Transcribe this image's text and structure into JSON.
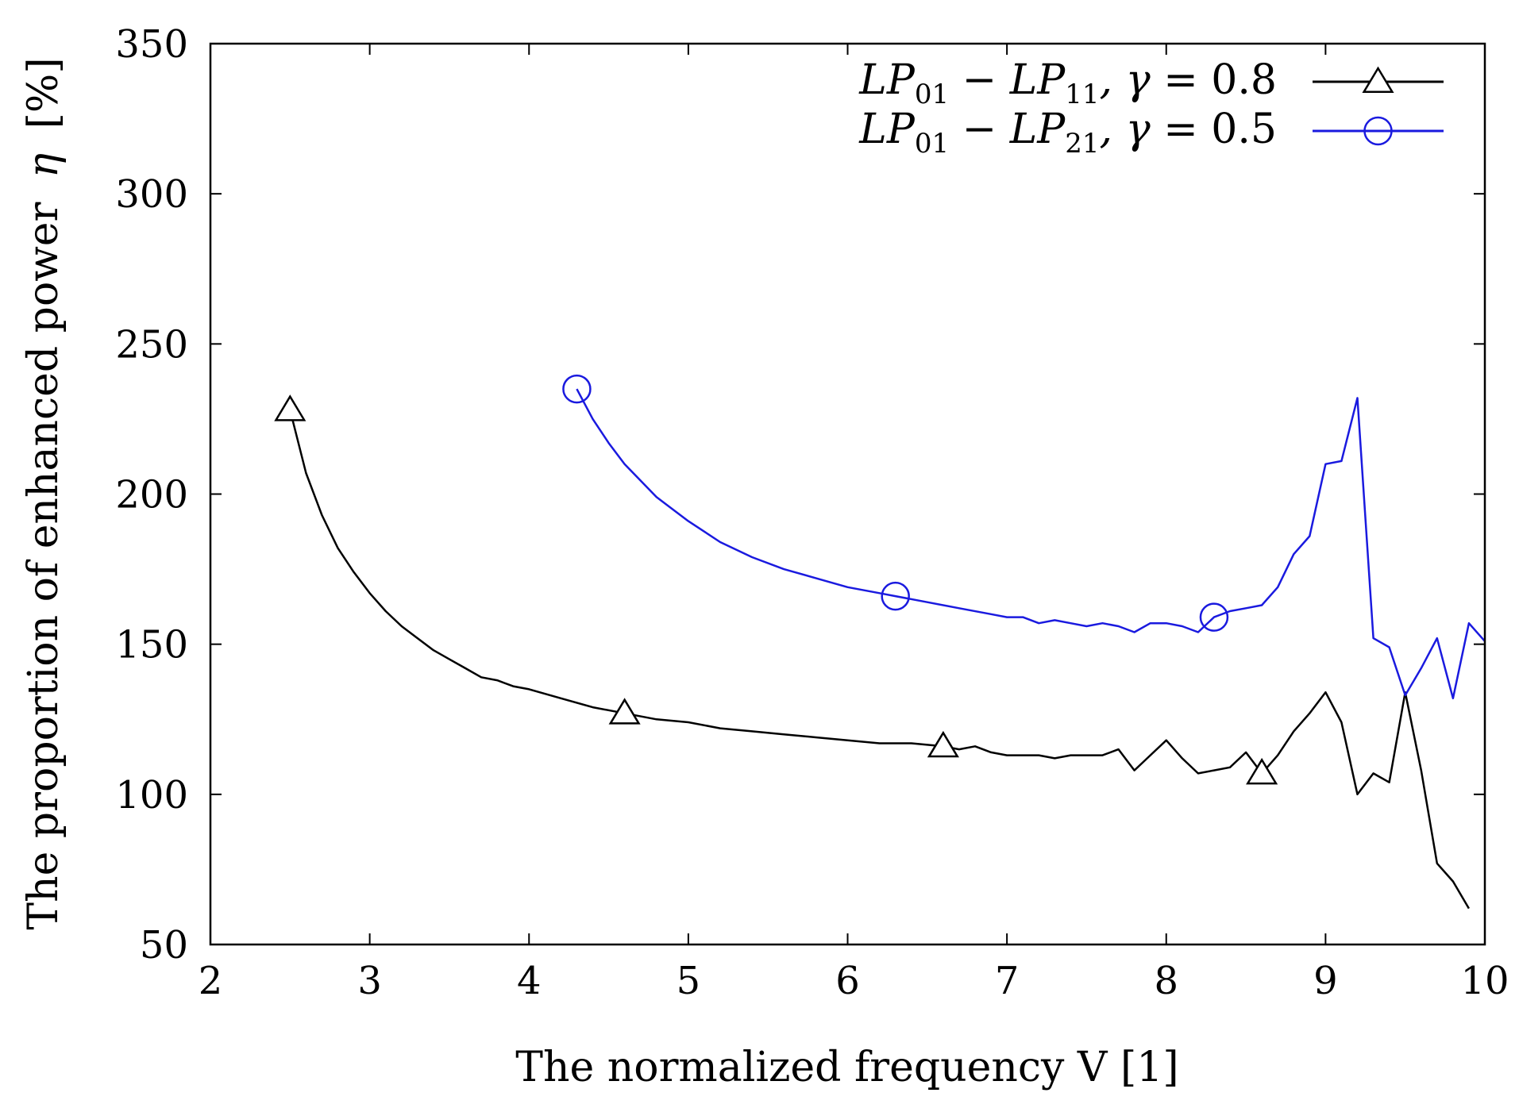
{
  "chart_data": {
    "type": "line",
    "title": "",
    "xlabel": "The normalized frequency V [1]",
    "ylabel_prefix": "The proportion of enhanced power",
    "ylabel_symbol": "η",
    "ylabel_unit": "[%]",
    "xlim": [
      2,
      10
    ],
    "ylim": [
      50,
      350
    ],
    "xticks": [
      "2",
      "3",
      "4",
      "5",
      "6",
      "7",
      "8",
      "9",
      "10"
    ],
    "yticks": [
      "50",
      "100",
      "150",
      "200",
      "250",
      "300",
      "350"
    ],
    "grid": false,
    "legend_position": "top-right",
    "series": [
      {
        "name": "LP01 − LP11, γ = 0.8",
        "legend": {
          "a": "LP",
          "a_sub": "01",
          "op": " − ",
          "b": "LP",
          "b_sub": "11",
          "param": ", γ = ",
          "value": "0.8"
        },
        "color": "#000000",
        "marker": "triangle",
        "marker_x": [
          2.5,
          4.6,
          6.6,
          8.6
        ],
        "x": [
          2.5,
          2.6,
          2.7,
          2.8,
          2.9,
          3.0,
          3.1,
          3.2,
          3.3,
          3.4,
          3.5,
          3.6,
          3.7,
          3.8,
          3.9,
          4.0,
          4.2,
          4.4,
          4.6,
          4.8,
          5.0,
          5.2,
          5.4,
          5.6,
          5.8,
          6.0,
          6.2,
          6.4,
          6.6,
          6.7,
          6.8,
          6.9,
          7.0,
          7.1,
          7.2,
          7.3,
          7.4,
          7.5,
          7.6,
          7.7,
          7.8,
          7.9,
          8.0,
          8.1,
          8.2,
          8.3,
          8.4,
          8.5,
          8.6,
          8.7,
          8.8,
          8.9,
          9.0,
          9.1,
          9.2,
          9.3,
          9.4,
          9.5,
          9.6,
          9.7,
          9.8,
          9.9
        ],
        "y": [
          228,
          207,
          193,
          182,
          174,
          167,
          161,
          156,
          152,
          148,
          145,
          142,
          139,
          138,
          136,
          135,
          132,
          129,
          127,
          125,
          124,
          122,
          121,
          120,
          119,
          118,
          117,
          117,
          116,
          115,
          116,
          114,
          113,
          113,
          113,
          112,
          113,
          113,
          113,
          115,
          108,
          113,
          118,
          112,
          107,
          108,
          109,
          114,
          107,
          113,
          121,
          127,
          134,
          124,
          100,
          107,
          104,
          134,
          108,
          77,
          71,
          62
        ]
      },
      {
        "name": "LP01 − LP21, γ = 0.5",
        "legend": {
          "a": "LP",
          "a_sub": "01",
          "op": " − ",
          "b": "LP",
          "b_sub": "21",
          "param": ", γ = ",
          "value": "0.5"
        },
        "color": "#1a1adf",
        "marker": "circle",
        "marker_x": [
          4.3,
          6.3,
          8.3
        ],
        "x": [
          4.3,
          4.4,
          4.5,
          4.6,
          4.8,
          5.0,
          5.2,
          5.4,
          5.6,
          5.8,
          6.0,
          6.2,
          6.3,
          6.5,
          6.7,
          6.9,
          7.0,
          7.1,
          7.2,
          7.3,
          7.4,
          7.5,
          7.6,
          7.7,
          7.8,
          7.9,
          8.0,
          8.1,
          8.2,
          8.3,
          8.4,
          8.5,
          8.6,
          8.7,
          8.8,
          8.9,
          9.0,
          9.1,
          9.2,
          9.3,
          9.4,
          9.5,
          9.6,
          9.7,
          9.8,
          9.9,
          10.0
        ],
        "y": [
          235,
          225,
          217,
          210,
          199,
          191,
          184,
          179,
          175,
          172,
          169,
          167,
          166,
          164,
          162,
          160,
          159,
          159,
          157,
          158,
          157,
          156,
          157,
          156,
          154,
          157,
          157,
          156,
          154,
          159,
          161,
          162,
          163,
          169,
          180,
          186,
          210,
          211,
          232,
          152,
          149,
          133,
          142,
          152,
          132,
          157,
          151
        ]
      }
    ]
  }
}
